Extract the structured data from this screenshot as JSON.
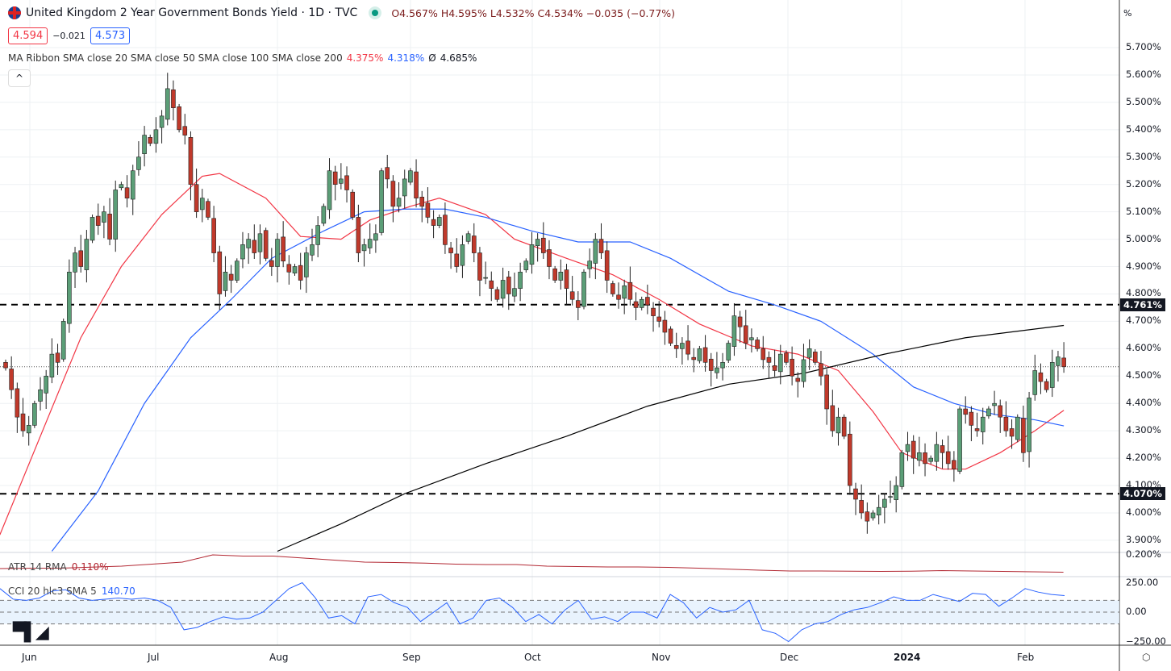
{
  "header": {
    "title": "United Kingdom 2 Year Government Bonds Yield · 1D · TVC",
    "open": "O4.567%",
    "high": "H4.595%",
    "low": "L4.532%",
    "close": "C4.534%",
    "change": "−0.035 (−0.77%)",
    "bid": "4.594",
    "spread": "−0.021",
    "ask": "4.573"
  },
  "ma_legend": {
    "label": "MA Ribbon SMA close 20 SMA close 50 SMA close 100 SMA close 200",
    "v20": "4.375%",
    "v50": "4.318%",
    "symbol": "Ø",
    "v200": "4.685%"
  },
  "collapse_icon": "^",
  "atr_legend": {
    "label": "ATR 14 RMA",
    "value": "0.110%"
  },
  "cci_legend": {
    "label": "CCI 20 hlc3 SMA 5",
    "value": "140.70"
  },
  "colors": {
    "up": "#26a69a",
    "down": "#ef5350",
    "upBody": "#5b9e77",
    "downBody": "#c0392b",
    "sma20": "#f23645",
    "sma50": "#2962ff",
    "sma200": "#000000",
    "atr": "#b22833",
    "cci": "#2962ff"
  },
  "price_axis": {
    "unit": "%",
    "ticks": [
      "5.700%",
      "5.600%",
      "5.500%",
      "5.400%",
      "5.300%",
      "5.200%",
      "5.100%",
      "5.000%",
      "4.900%",
      "4.800%",
      "4.700%",
      "4.600%",
      "4.500%",
      "4.400%",
      "4.300%",
      "4.200%",
      "4.100%",
      "4.000%",
      "3.900%"
    ]
  },
  "atr_axis": {
    "ticks": [
      "0.200%"
    ]
  },
  "cci_axis": {
    "ticks": [
      "250.00",
      "0.00",
      "−250.00"
    ]
  },
  "time_axis": [
    "Jun",
    "Jul",
    "Aug",
    "Sep",
    "Oct",
    "Nov",
    "Dec",
    "2024",
    "Feb"
  ],
  "levels": [
    {
      "value": 4.761,
      "label": "4.761%"
    },
    {
      "value": 4.07,
      "label": "4.070%"
    }
  ],
  "current_price": 4.534,
  "chart_data": {
    "type": "candlestick",
    "title": "United Kingdom 2 Year Government Bonds Yield · 1D · TVC",
    "ylim": [
      3.86,
      5.78
    ],
    "closes": [
      4.53,
      4.45,
      4.35,
      4.3,
      4.32,
      4.4,
      4.45,
      4.5,
      4.58,
      4.55,
      4.7,
      4.88,
      4.95,
      4.9,
      5.0,
      5.08,
      5.05,
      5.1,
      5.0,
      5.18,
      5.2,
      5.15,
      5.25,
      5.3,
      5.38,
      5.35,
      5.4,
      5.45,
      5.55,
      5.48,
      5.4,
      5.38,
      5.2,
      5.1,
      5.15,
      5.08,
      4.95,
      4.8,
      4.88,
      4.85,
      4.92,
      4.98,
      5.0,
      4.95,
      5.02,
      4.93,
      4.9,
      5.0,
      4.92,
      4.88,
      4.9,
      4.85,
      4.95,
      4.98,
      5.05,
      5.12,
      5.25,
      5.2,
      5.22,
      5.18,
      5.08,
      4.95,
      4.98,
      5.0,
      5.02,
      5.25,
      5.22,
      5.12,
      5.15,
      5.22,
      5.25,
      5.15,
      5.12,
      5.08,
      5.05,
      5.08,
      4.98,
      4.95,
      4.9,
      4.98,
      5.02,
      4.95,
      4.85,
      4.86,
      4.82,
      4.78,
      4.85,
      4.8,
      4.82,
      4.88,
      4.92,
      4.98,
      5.0,
      4.95,
      4.9,
      4.85,
      4.88,
      4.82,
      4.78,
      4.75,
      4.88,
      4.92,
      5.0,
      4.95,
      4.85,
      4.8,
      4.78,
      4.83,
      4.78,
      4.75,
      4.78,
      4.76,
      4.72,
      4.7,
      4.66,
      4.62,
      4.6,
      4.62,
      4.58,
      4.56,
      4.6,
      4.55,
      4.52,
      4.53,
      4.55,
      4.62,
      4.72,
      4.68,
      4.62,
      4.64,
      4.6,
      4.56,
      4.55,
      4.52,
      4.58,
      4.55,
      4.5,
      4.48,
      4.56,
      4.6,
      4.55,
      4.5,
      4.38,
      4.3,
      4.35,
      4.28,
      4.1,
      4.05,
      4.0,
      3.97,
      4.0,
      4.02,
      4.05,
      4.06,
      4.1,
      4.22,
      4.25,
      4.2,
      4.22,
      4.18,
      4.2,
      4.25,
      4.22,
      4.18,
      4.16,
      4.38,
      4.36,
      4.32,
      4.3,
      4.35,
      4.38,
      4.4,
      4.35,
      4.3,
      4.28,
      4.35,
      4.22,
      4.42,
      4.52,
      4.48,
      4.45,
      4.55,
      4.57,
      4.534
    ],
    "series": [
      {
        "name": "SMA close 20",
        "points": [
          [
            -1,
            3.92
          ],
          [
            13,
            4.64
          ],
          [
            20,
            4.9
          ],
          [
            27,
            5.09
          ],
          [
            34,
            5.23
          ],
          [
            37,
            5.24
          ],
          [
            45,
            5.15
          ],
          [
            51,
            5.01
          ],
          [
            58,
            5.0
          ],
          [
            63,
            5.07
          ],
          [
            70,
            5.12
          ],
          [
            75,
            5.15
          ],
          [
            83,
            5.09
          ],
          [
            88,
            5.0
          ],
          [
            97,
            4.93
          ],
          [
            105,
            4.87
          ],
          [
            113,
            4.78
          ],
          [
            120,
            4.69
          ],
          [
            129,
            4.61
          ],
          [
            137,
            4.58
          ],
          [
            144,
            4.52
          ],
          [
            150,
            4.37
          ],
          [
            155,
            4.22
          ],
          [
            162,
            4.16
          ],
          [
            166,
            4.16
          ],
          [
            172,
            4.22
          ],
          [
            178,
            4.3
          ],
          [
            183,
            4.375
          ]
        ]
      },
      {
        "name": "SMA close 50",
        "points": [
          [
            8,
            3.86
          ],
          [
            16,
            4.08
          ],
          [
            24,
            4.4
          ],
          [
            32,
            4.64
          ],
          [
            39,
            4.78
          ],
          [
            46,
            4.93
          ],
          [
            55,
            5.03
          ],
          [
            62,
            5.1
          ],
          [
            69,
            5.11
          ],
          [
            76,
            5.11
          ],
          [
            83,
            5.08
          ],
          [
            91,
            5.03
          ],
          [
            99,
            4.99
          ],
          [
            108,
            4.99
          ],
          [
            115,
            4.93
          ],
          [
            125,
            4.81
          ],
          [
            133,
            4.76
          ],
          [
            141,
            4.7
          ],
          [
            150,
            4.58
          ],
          [
            157,
            4.46
          ],
          [
            164,
            4.4
          ],
          [
            171,
            4.36
          ],
          [
            178,
            4.34
          ],
          [
            183,
            4.318
          ]
        ]
      },
      {
        "name": "SMA close 200",
        "points": [
          [
            47,
            3.86
          ],
          [
            58,
            3.96
          ],
          [
            69,
            4.07
          ],
          [
            83,
            4.18
          ],
          [
            97,
            4.28
          ],
          [
            111,
            4.39
          ],
          [
            125,
            4.47
          ],
          [
            138,
            4.51
          ],
          [
            152,
            4.58
          ],
          [
            166,
            4.64
          ],
          [
            183,
            4.685
          ]
        ]
      }
    ],
    "atr": [
      0.128,
      0.13,
      0.13,
      0.135,
      0.14,
      0.15,
      0.16,
      0.196,
      0.19,
      0.19,
      0.18,
      0.17,
      0.16,
      0.158,
      0.155,
      0.15,
      0.148,
      0.148,
      0.14,
      0.138,
      0.136,
      0.136,
      0.134,
      0.13,
      0.125,
      0.12,
      0.116,
      0.116,
      0.115,
      0.114,
      0.115,
      0.118,
      0.116,
      0.114,
      0.112,
      0.11
    ],
    "cci": [
      200,
      110,
      100,
      120,
      180,
      190,
      120,
      100,
      110,
      120,
      110,
      120,
      100,
      40,
      -150,
      -130,
      -80,
      -40,
      -60,
      -50,
      0,
      100,
      200,
      250,
      120,
      -50,
      -30,
      -100,
      130,
      150,
      80,
      40,
      -80,
      0,
      80,
      -100,
      -50,
      100,
      120,
      40,
      -80,
      -20,
      -100,
      20,
      100,
      -60,
      -40,
      -80,
      0,
      0,
      -50,
      150,
      80,
      -50,
      40,
      0,
      20,
      100,
      -150,
      -180,
      -250,
      -150,
      -100,
      -80,
      -20,
      20,
      40,
      80,
      130,
      100,
      100,
      150,
      120,
      90,
      160,
      150,
      50,
      120,
      200,
      170,
      150,
      140.7
    ]
  }
}
